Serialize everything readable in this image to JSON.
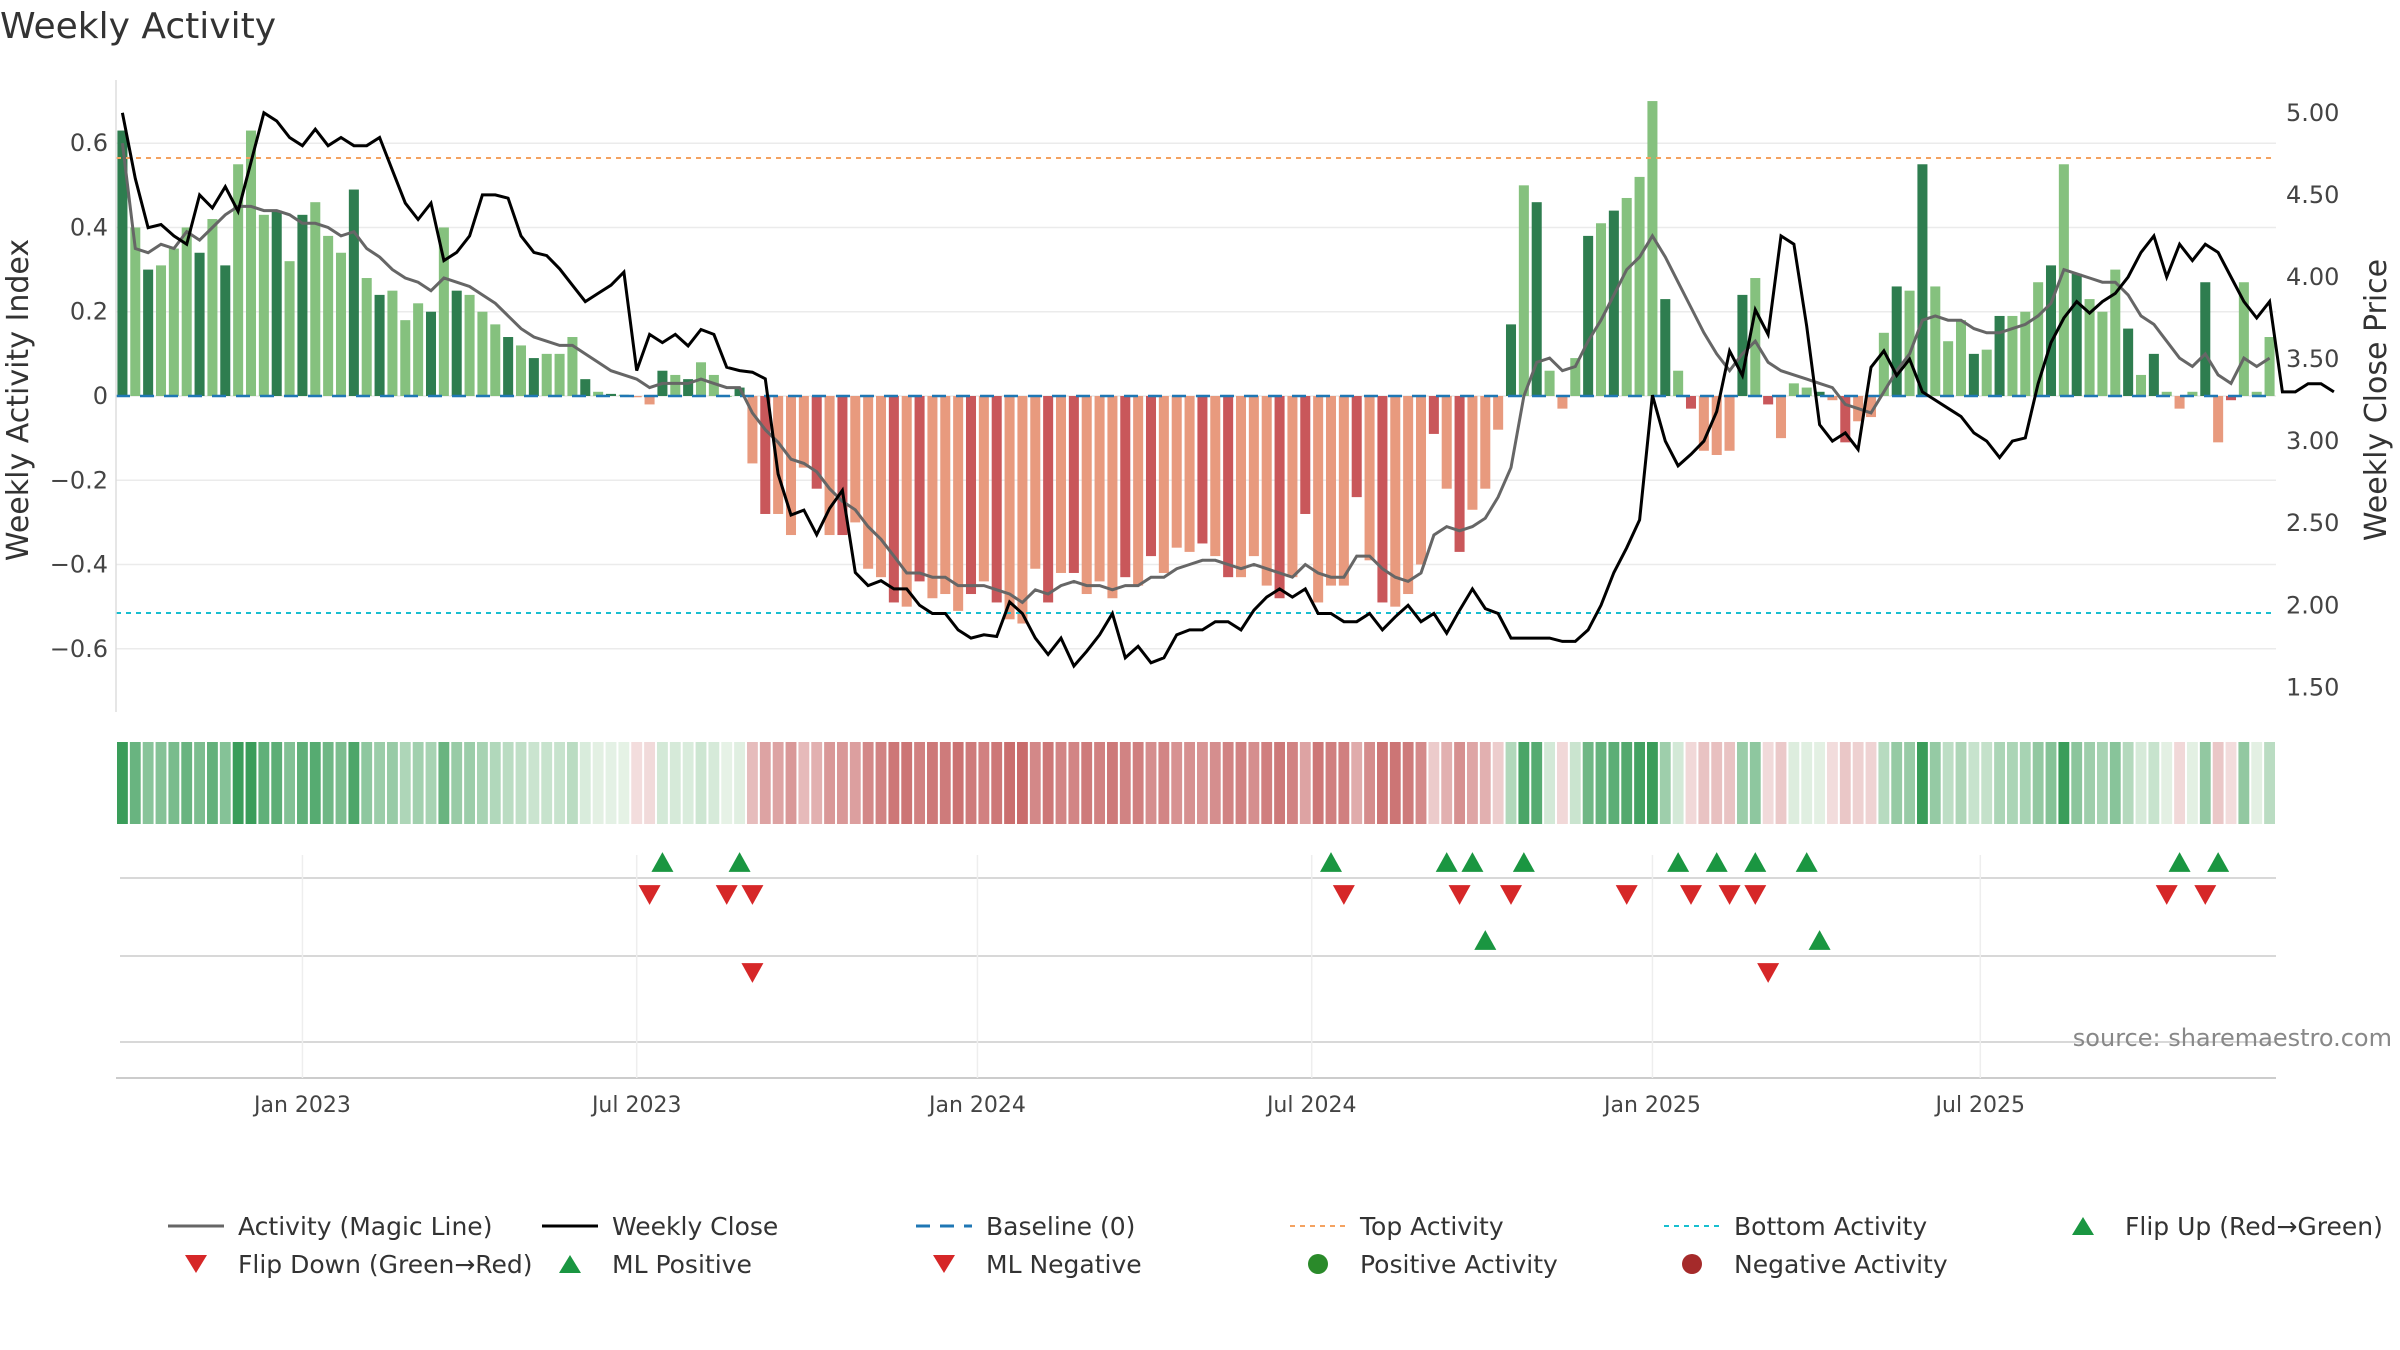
{
  "title": "Weekly Activity",
  "source": "source: sharemaestro.com",
  "colors": {
    "pos_dark": "#2e7d4f",
    "pos_light": "#85c17e",
    "neg_dark": "#c9575a",
    "neg_light": "#e89a7e",
    "magic_line": "#666666",
    "close_line": "#000000",
    "baseline": "#1f77b4",
    "top": "#f4a261",
    "bottom": "#17becf",
    "flip_up": "#1a9641",
    "flip_down": "#d62728"
  },
  "chart_data": {
    "type": "bar",
    "title": "Weekly Activity",
    "ylabel": "Weekly Activity Index",
    "y2label": "Weekly Close Price",
    "ylim": [
      -0.75,
      0.75
    ],
    "y2lim": [
      1.35,
      5.2
    ],
    "yticks": [
      0.6,
      0.4,
      0.2,
      0,
      -0.2,
      -0.4,
      -0.6
    ],
    "ytick_labels": [
      "0.6",
      "0.4",
      "0.2",
      "0",
      "−0.2",
      "−0.4",
      "−0.6"
    ],
    "y2ticks": [
      5.0,
      4.5,
      4.0,
      3.5,
      3.0,
      2.5,
      2.0,
      1.5
    ],
    "y2tick_labels": [
      "5.00",
      "4.50",
      "4.00",
      "3.50",
      "3.00",
      "2.50",
      "2.00",
      "1.50"
    ],
    "xticks": [
      {
        "week": 14.0,
        "label": "Jan 2023"
      },
      {
        "week": 40.0,
        "label": "Jul 2023"
      },
      {
        "week": 66.5,
        "label": "Jan 2024"
      },
      {
        "week": 92.5,
        "label": "Jul 2024"
      },
      {
        "week": 119.0,
        "label": "Jan 2025"
      },
      {
        "week": 144.5,
        "label": "Jul 2025"
      }
    ],
    "top_activity": 0.565,
    "bottom_activity": -0.515,
    "activity": [
      0.63,
      0.4,
      0.3,
      0.31,
      0.35,
      0.4,
      0.34,
      0.42,
      0.31,
      0.55,
      0.63,
      0.43,
      0.44,
      0.32,
      0.43,
      0.46,
      0.38,
      0.34,
      0.49,
      0.28,
      0.24,
      0.25,
      0.18,
      0.22,
      0.2,
      0.4,
      0.25,
      0.24,
      0.2,
      0.17,
      0.14,
      0.12,
      0.09,
      0.1,
      0.1,
      0.14,
      0.04,
      0.01,
      0.005,
      0.003,
      -0.003,
      -0.02,
      0.06,
      0.05,
      0.04,
      0.08,
      0.05,
      0.0,
      0.02,
      -0.16,
      -0.28,
      -0.28,
      -0.33,
      -0.17,
      -0.22,
      -0.33,
      -0.33,
      -0.3,
      -0.41,
      -0.43,
      -0.49,
      -0.5,
      -0.44,
      -0.48,
      -0.47,
      -0.51,
      -0.47,
      -0.44,
      -0.49,
      -0.53,
      -0.54,
      -0.41,
      -0.49,
      -0.42,
      -0.42,
      -0.47,
      -0.44,
      -0.48,
      -0.43,
      -0.45,
      -0.38,
      -0.42,
      -0.36,
      -0.37,
      -0.35,
      -0.38,
      -0.43,
      -0.43,
      -0.38,
      -0.45,
      -0.48,
      -0.43,
      -0.28,
      -0.49,
      -0.45,
      -0.45,
      -0.24,
      -0.39,
      -0.49,
      -0.5,
      -0.47,
      -0.4,
      -0.09,
      -0.22,
      -0.37,
      -0.27,
      -0.22,
      -0.08,
      0.17,
      0.5,
      0.46,
      0.06,
      -0.03,
      0.09,
      0.38,
      0.41,
      0.44,
      0.47,
      0.52,
      0.7,
      0.23,
      0.06,
      -0.03,
      -0.13,
      -0.14,
      -0.13,
      0.24,
      0.28,
      -0.02,
      -0.1,
      0.03,
      0.02,
      0.01,
      -0.01,
      -0.11,
      -0.06,
      -0.05,
      0.15,
      0.26,
      0.25,
      0.55,
      0.26,
      0.13,
      0.18,
      0.1,
      0.11,
      0.19,
      0.19,
      0.2,
      0.27,
      0.31,
      0.55,
      0.29,
      0.23,
      0.2,
      0.3,
      0.16,
      0.05,
      0.1,
      0.01,
      -0.03,
      0.01,
      0.27,
      -0.11,
      -0.01,
      0.27,
      0.01,
      0.14
    ],
    "weekly_close": [
      5.0,
      4.6,
      4.3,
      4.32,
      4.25,
      4.2,
      4.5,
      4.42,
      4.55,
      4.4,
      4.7,
      5.0,
      4.95,
      4.85,
      4.8,
      4.9,
      4.8,
      4.85,
      4.8,
      4.8,
      4.85,
      4.65,
      4.45,
      4.35,
      4.45,
      4.1,
      4.15,
      4.25,
      4.5,
      4.5,
      4.48,
      4.25,
      4.15,
      4.13,
      4.05,
      3.95,
      3.85,
      3.9,
      3.95,
      4.03,
      3.43,
      3.65,
      3.6,
      3.65,
      3.58,
      3.68,
      3.65,
      3.45,
      3.43,
      3.42,
      3.38,
      2.8,
      2.55,
      2.58,
      2.43,
      2.59,
      2.7,
      2.2,
      2.12,
      2.15,
      2.1,
      2.1,
      2.0,
      1.95,
      1.95,
      1.85,
      1.8,
      1.82,
      1.81,
      2.02,
      1.95,
      1.8,
      1.7,
      1.8,
      1.63,
      1.72,
      1.82,
      1.95,
      1.68,
      1.75,
      1.65,
      1.68,
      1.82,
      1.85,
      1.85,
      1.9,
      1.9,
      1.85,
      1.97,
      2.05,
      2.1,
      2.05,
      2.1,
      1.95,
      1.95,
      1.9,
      1.9,
      1.95,
      1.85,
      1.93,
      2.0,
      1.9,
      1.95,
      1.83,
      1.97,
      2.1,
      1.98,
      1.95,
      1.8,
      1.8,
      1.8,
      1.8,
      1.78,
      1.78,
      1.85,
      2.0,
      2.2,
      2.35,
      2.52,
      3.28,
      3.0,
      2.85,
      2.92,
      3.0,
      3.18,
      3.55,
      3.4,
      3.8,
      3.65,
      4.25,
      4.2,
      3.7,
      3.1,
      3.0,
      3.05,
      2.95,
      3.45,
      3.55,
      3.4,
      3.5,
      3.3,
      3.25,
      3.2,
      3.15,
      3.05,
      3.0,
      2.9,
      3.0,
      3.02,
      3.35,
      3.6,
      3.75,
      3.85,
      3.78,
      3.85,
      3.9,
      4.0,
      4.15,
      4.25,
      4.0,
      4.2,
      4.1,
      4.2,
      4.15,
      4.0,
      3.85,
      3.75,
      3.85,
      3.3,
      3.3,
      3.35,
      3.35,
      3.3
    ],
    "magic_line": [
      0.6,
      0.35,
      0.34,
      0.36,
      0.35,
      0.39,
      0.37,
      0.4,
      0.43,
      0.45,
      0.45,
      0.44,
      0.44,
      0.43,
      0.41,
      0.41,
      0.4,
      0.38,
      0.39,
      0.35,
      0.33,
      0.3,
      0.28,
      0.27,
      0.25,
      0.28,
      0.27,
      0.26,
      0.24,
      0.22,
      0.19,
      0.16,
      0.14,
      0.13,
      0.12,
      0.12,
      0.1,
      0.08,
      0.06,
      0.05,
      0.04,
      0.02,
      0.03,
      0.03,
      0.03,
      0.04,
      0.03,
      0.02,
      0.02,
      -0.04,
      -0.08,
      -0.11,
      -0.15,
      -0.16,
      -0.18,
      -0.22,
      -0.25,
      -0.27,
      -0.31,
      -0.34,
      -0.38,
      -0.42,
      -0.42,
      -0.43,
      -0.43,
      -0.45,
      -0.45,
      -0.45,
      -0.46,
      -0.47,
      -0.49,
      -0.46,
      -0.47,
      -0.45,
      -0.44,
      -0.45,
      -0.45,
      -0.46,
      -0.45,
      -0.45,
      -0.43,
      -0.43,
      -0.41,
      -0.4,
      -0.39,
      -0.39,
      -0.4,
      -0.41,
      -0.4,
      -0.41,
      -0.42,
      -0.43,
      -0.4,
      -0.42,
      -0.43,
      -0.43,
      -0.38,
      -0.38,
      -0.41,
      -0.43,
      -0.44,
      -0.42,
      -0.33,
      -0.31,
      -0.32,
      -0.31,
      -0.29,
      -0.24,
      -0.17,
      0.0,
      0.08,
      0.09,
      0.06,
      0.07,
      0.13,
      0.18,
      0.24,
      0.3,
      0.33,
      0.38,
      0.33,
      0.27,
      0.21,
      0.15,
      0.1,
      0.06,
      0.1,
      0.13,
      0.08,
      0.06,
      0.05,
      0.04,
      0.03,
      0.02,
      -0.02,
      -0.03,
      -0.04,
      0.01,
      0.06,
      0.1,
      0.18,
      0.19,
      0.18,
      0.18,
      0.16,
      0.15,
      0.15,
      0.16,
      0.17,
      0.19,
      0.22,
      0.3,
      0.29,
      0.28,
      0.27,
      0.27,
      0.24,
      0.19,
      0.17,
      0.13,
      0.09,
      0.07,
      0.1,
      0.05,
      0.03,
      0.09,
      0.07,
      0.09
    ],
    "flip_up_weeks": [
      42,
      48,
      94,
      103,
      105,
      109,
      121,
      124,
      127,
      131,
      160,
      163
    ],
    "flip_down_weeks": [
      41,
      47,
      49,
      95,
      104,
      108,
      117,
      122,
      125,
      127,
      159,
      162
    ],
    "ml_positive_weeks": [
      106,
      132
    ],
    "ml_negative_weeks": [
      49,
      128
    ]
  },
  "legend": [
    {
      "label": "Activity (Magic Line)",
      "marker": "solid-gray-line"
    },
    {
      "label": "Weekly Close",
      "marker": "solid-black-line"
    },
    {
      "label": "Baseline (0)",
      "marker": "dashed-blue-line"
    },
    {
      "label": "Top Activity",
      "marker": "dotted-orange-line"
    },
    {
      "label": "Bottom Activity",
      "marker": "dotted-cyan-line"
    },
    {
      "label": "Flip Up (Red→Green)",
      "marker": "green-up-triangle"
    },
    {
      "label": "Flip Down (Green→Red)",
      "marker": "red-down-triangle"
    },
    {
      "label": "ML Positive",
      "marker": "green-up-triangle"
    },
    {
      "label": "ML Negative",
      "marker": "red-down-triangle"
    },
    {
      "label": "Positive Activity",
      "marker": "green-circle"
    },
    {
      "label": "Negative Activity",
      "marker": "dark-red-circle"
    }
  ]
}
